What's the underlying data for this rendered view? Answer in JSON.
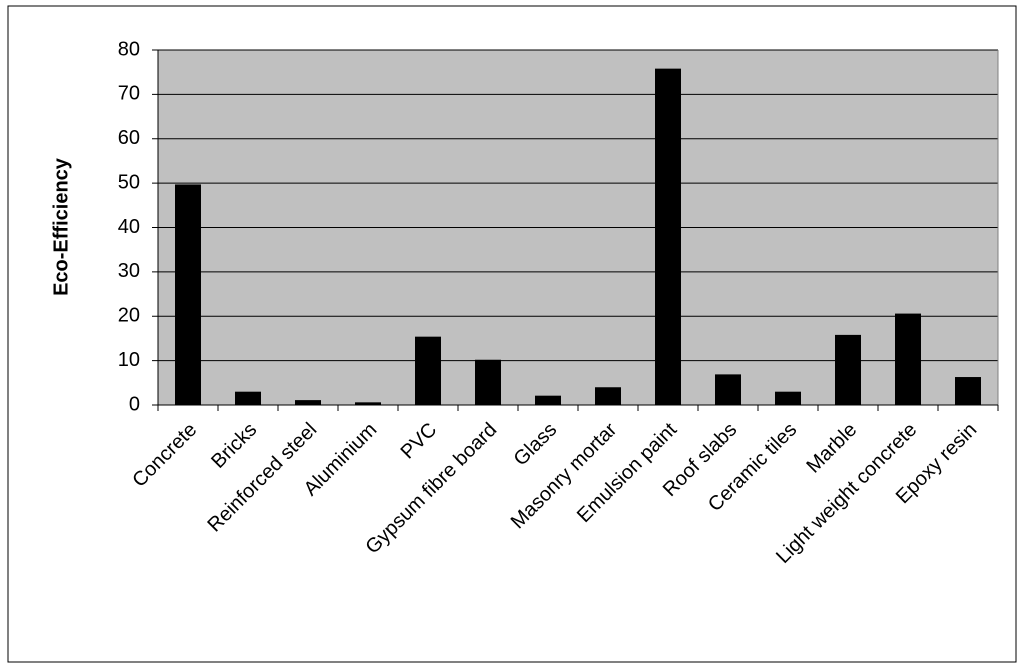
{
  "chart_data": {
    "type": "bar",
    "y_axis_label": "Eco-Efficiency",
    "categories": [
      "Concrete",
      "Bricks",
      "Reinforced steel",
      "Aluminium",
      "PVC",
      "Gypsum fibre board",
      "Glass",
      "Masonry mortar",
      "Emulsion paint",
      "Roof slabs",
      "Ceramic tiles",
      "Marble",
      "Light weight concrete",
      "Epoxy resin"
    ],
    "values": [
      49.7,
      3,
      1.1,
      0.6,
      15.4,
      10.2,
      2.1,
      4,
      75.8,
      6.9,
      3,
      15.8,
      20.6,
      6.3
    ],
    "color": "#000000",
    "plot_background": "#c0c0c0",
    "ylim": [
      0,
      80
    ],
    "yticks": [
      0,
      10,
      20,
      30,
      40,
      50,
      60,
      70,
      80
    ],
    "grid": true
  }
}
